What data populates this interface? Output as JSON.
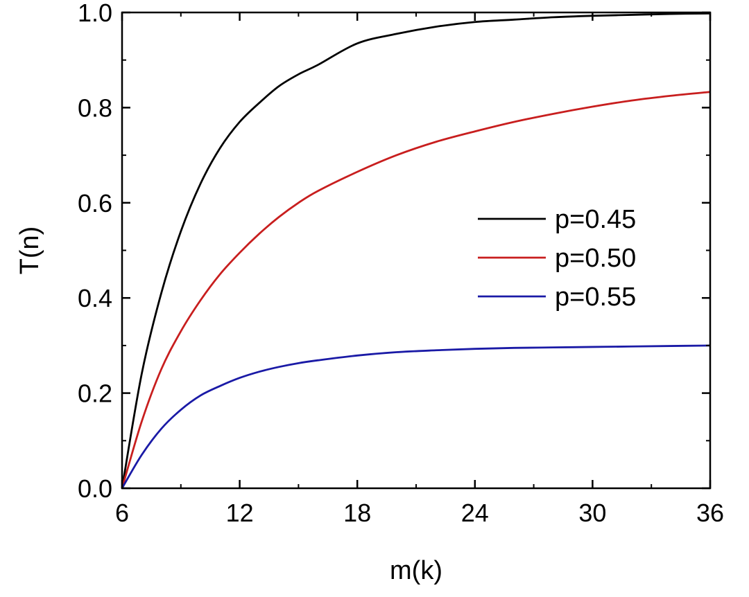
{
  "chart_data": {
    "type": "line",
    "xlabel": "m(k)",
    "ylabel": "T(n)",
    "xlim": [
      6,
      36
    ],
    "ylim": [
      0,
      1.0
    ],
    "x_ticks": [
      6,
      12,
      18,
      24,
      30,
      36
    ],
    "y_ticks": [
      0.0,
      0.2,
      0.4,
      0.6,
      0.8,
      1.0
    ],
    "x_tick_labels": [
      "6",
      "12",
      "18",
      "24",
      "30",
      "36"
    ],
    "y_tick_labels": [
      "0.0",
      "0.2",
      "0.4",
      "0.6",
      "0.8",
      "1.0"
    ],
    "grid": false,
    "legend_position": "center-right",
    "series": [
      {
        "name": "p=0.45",
        "color": "#000000",
        "x": [
          6,
          7,
          8,
          9,
          10,
          11,
          12,
          13,
          14,
          15,
          16,
          18,
          20,
          22,
          24,
          26,
          28,
          30,
          32,
          34,
          36
        ],
        "y": [
          0.0,
          0.24,
          0.41,
          0.54,
          0.64,
          0.715,
          0.77,
          0.81,
          0.845,
          0.87,
          0.89,
          0.935,
          0.955,
          0.97,
          0.98,
          0.985,
          0.99,
          0.993,
          0.995,
          0.997,
          0.998
        ]
      },
      {
        "name": "p=0.50",
        "color": "#c81e1e",
        "x": [
          6,
          7,
          8,
          9,
          10,
          11,
          12,
          13,
          14,
          15,
          16,
          18,
          20,
          22,
          24,
          26,
          28,
          30,
          32,
          34,
          36
        ],
        "y": [
          0.0,
          0.14,
          0.25,
          0.33,
          0.395,
          0.45,
          0.495,
          0.535,
          0.57,
          0.6,
          0.625,
          0.665,
          0.7,
          0.728,
          0.75,
          0.77,
          0.787,
          0.802,
          0.815,
          0.825,
          0.833
        ]
      },
      {
        "name": "p=0.55",
        "color": "#1a1aa6",
        "x": [
          6,
          7,
          8,
          9,
          10,
          11,
          12,
          13,
          14,
          15,
          16,
          18,
          20,
          22,
          24,
          26,
          28,
          30,
          32,
          34,
          36
        ],
        "y": [
          0.0,
          0.07,
          0.125,
          0.165,
          0.195,
          0.215,
          0.232,
          0.245,
          0.255,
          0.263,
          0.269,
          0.279,
          0.286,
          0.29,
          0.293,
          0.295,
          0.296,
          0.297,
          0.298,
          0.299,
          0.3
        ]
      }
    ]
  }
}
